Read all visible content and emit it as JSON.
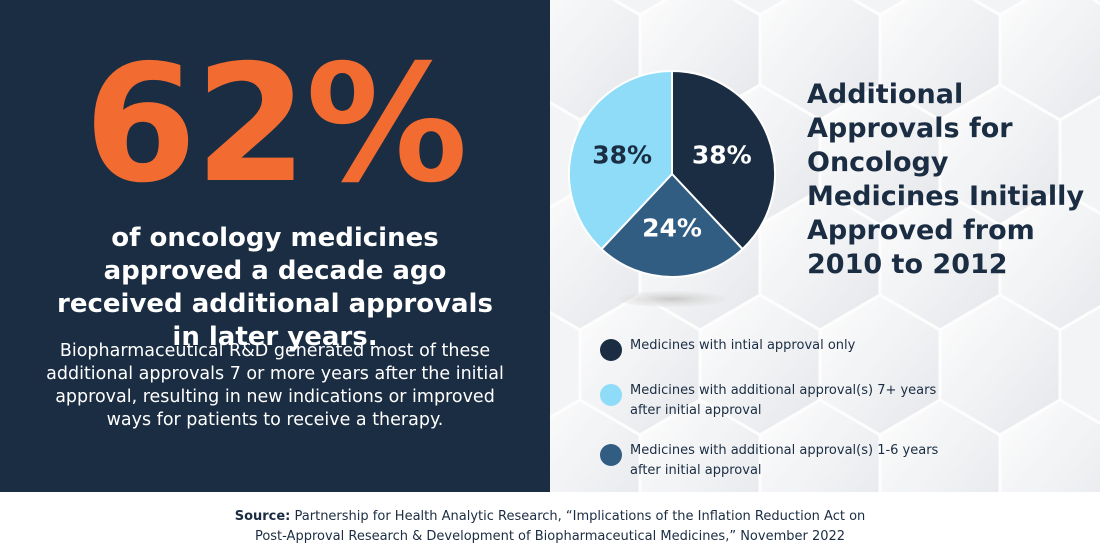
{
  "left": {
    "big_stat": "62%",
    "headline": "of oncology medicines approved a decade ago received additional approvals in later years.",
    "body": "Biopharmaceutical R&D generated most of these additional approvals 7 or more years after the initial approval, resulting in new indications or improved ways for patients to receive a therapy."
  },
  "chart_data": {
    "type": "pie",
    "title": "Additional Approvals for Oncology Medicines Initially Approved from 2010 to 2012",
    "categories": [
      "Medicines with intial approval only",
      "Medicines with additional approval(s) 7+ years after initial approval",
      "Medicines with additional approval(s) 1-6 years after initial approval"
    ],
    "values": [
      38,
      38,
      24
    ],
    "data_labels": [
      "38%",
      "38%",
      "24%"
    ],
    "colors": [
      "#1b2d42",
      "#8fdcf8",
      "#325d82"
    ],
    "label_colors": [
      "#ffffff",
      "#1b2d42",
      "#ffffff"
    ],
    "legend_position": "bottom"
  },
  "source": {
    "label": "Source:",
    "text_line1": "Partnership for Health Analytic Research, “Implications of the Inflation Reduction Act on",
    "text_line2": "Post-Approval Research & Development of Biopharmaceutical Medicines,” November 2022"
  }
}
